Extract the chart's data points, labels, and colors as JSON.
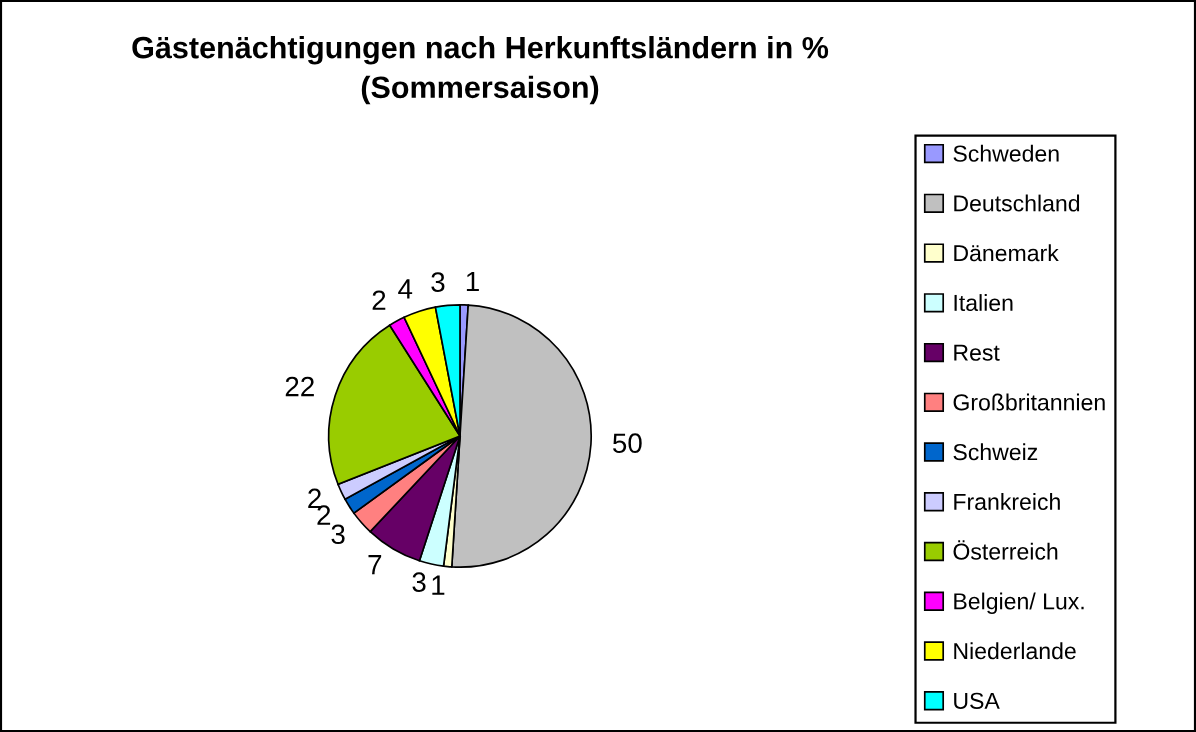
{
  "chart_data": {
    "type": "pie",
    "title": "Gästenächtigungen nach Herkunftsländern in %",
    "subtitle": "(Sommersaison)",
    "categories": [
      "Schweden",
      "Deutschland",
      "Dänemark",
      "Italien",
      "Rest",
      "Großbritannien",
      "Schweiz",
      "Frankreich",
      "Österreich",
      "Belgien/ Lux.",
      "Niederlande",
      "USA"
    ],
    "values": [
      1,
      50,
      1,
      3,
      7,
      3,
      2,
      2,
      22,
      2,
      4,
      3
    ],
    "colors": [
      "#9999ff",
      "#c0c0c0",
      "#ffffcc",
      "#ccffff",
      "#660066",
      "#ff8080",
      "#0066cc",
      "#ccccff",
      "#99cc00",
      "#ff00ff",
      "#ffff00",
      "#00ffff"
    ],
    "data_labels": true,
    "legend": "right"
  }
}
